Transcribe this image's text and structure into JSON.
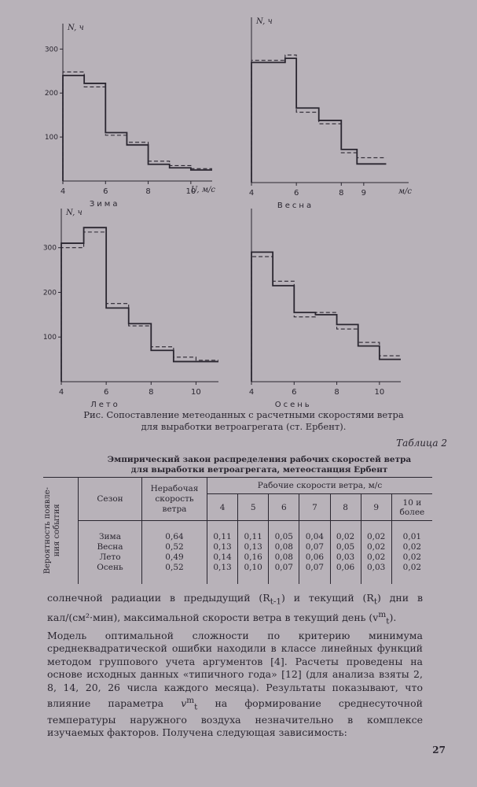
{
  "figure": {
    "caption_line1": "Рис. Сопоставление метеоданных с расчетными скоростями ветра",
    "caption_line2": "для выработки ветроагрегата (ст. Ербент)."
  },
  "chart_data": [
    {
      "type": "step",
      "title": "Зима",
      "ylabel": "N, ч",
      "xlabel": "U, м/с",
      "x_ticks": [
        "4",
        "6",
        "8",
        "10"
      ],
      "y_ticks": [
        "100",
        "200",
        "300"
      ],
      "ylim": [
        0,
        340
      ],
      "xlim": [
        4,
        11
      ],
      "series": [
        {
          "style": "solid",
          "edges": [
            4,
            5,
            6,
            7,
            8,
            9,
            10,
            11
          ],
          "values": [
            240,
            222,
            110,
            82,
            38,
            30,
            25
          ]
        },
        {
          "style": "dashed",
          "edges": [
            4,
            5,
            6,
            7,
            8,
            9,
            10,
            11
          ],
          "values": [
            248,
            214,
            104,
            88,
            45,
            35,
            28
          ]
        }
      ]
    },
    {
      "type": "step",
      "title": "Весна",
      "ylabel": "N, ч",
      "xlabel": "м/с",
      "x_ticks": [
        "4",
        "6",
        "8",
        "9"
      ],
      "y_ticks": [],
      "ylim": [
        0,
        380
      ],
      "xlim": [
        4,
        11
      ],
      "series": [
        {
          "style": "solid",
          "edges": [
            4,
            5.5,
            6,
            7,
            8,
            8.7,
            10
          ],
          "values": [
            290,
            300,
            180,
            150,
            80,
            45
          ]
        },
        {
          "style": "dashed",
          "edges": [
            4,
            5.5,
            6,
            7,
            8,
            8.7,
            10
          ],
          "values": [
            295,
            308,
            170,
            142,
            72,
            60
          ]
        }
      ]
    },
    {
      "type": "step",
      "title": "Лето",
      "ylabel": "N, ч",
      "xlabel": "",
      "x_ticks": [
        "4",
        "6",
        "8",
        "10"
      ],
      "y_ticks": [
        "100",
        "200",
        "300"
      ],
      "ylim": [
        0,
        370
      ],
      "xlim": [
        4,
        11
      ],
      "series": [
        {
          "style": "solid",
          "edges": [
            4,
            5,
            6,
            7,
            8,
            9,
            10,
            11
          ],
          "values": [
            310,
            345,
            165,
            130,
            70,
            45,
            45
          ]
        },
        {
          "style": "dashed",
          "edges": [
            4,
            5,
            6,
            7,
            8,
            9,
            10,
            11
          ],
          "values": [
            300,
            335,
            175,
            125,
            78,
            55,
            48
          ]
        }
      ]
    },
    {
      "type": "step",
      "title": "Осень",
      "ylabel": "",
      "xlabel": "",
      "x_ticks": [
        "4",
        "6",
        "8",
        "10"
      ],
      "y_ticks": [],
      "ylim": [
        0,
        370
      ],
      "xlim": [
        4,
        11
      ],
      "series": [
        {
          "style": "solid",
          "edges": [
            4,
            5,
            6,
            7,
            8,
            9,
            10,
            11
          ],
          "values": [
            290,
            215,
            155,
            150,
            128,
            80,
            50
          ]
        },
        {
          "style": "dashed",
          "edges": [
            4,
            5,
            6,
            7,
            8,
            9,
            10,
            11
          ],
          "values": [
            280,
            225,
            145,
            155,
            118,
            88,
            58
          ]
        }
      ]
    }
  ],
  "table": {
    "label": "Таблица 2",
    "title_line1": "Эмпирический закон распределения рабочих скоростей ветра",
    "title_line2": "для выработки ветроагрегата, метеостанция Ербент",
    "side_header_line1": "Вероятность появле-",
    "side_header_line2": "ния события",
    "season_header": "Сезон",
    "nonwork_header_line1": "Нерабочая",
    "nonwork_header_line2": "скорость",
    "nonwork_header_line3": "ветра",
    "work_header": "Рабочие скорости ветра, м/с",
    "speed_headers": [
      "4",
      "5",
      "6",
      "7",
      "8",
      "9"
    ],
    "last_header_line1": "10 и",
    "last_header_line2": "более",
    "seasons": [
      "Зима",
      "Весна",
      "Лето",
      "Осень"
    ],
    "nonwork": [
      "0,64",
      "0,52",
      "0,49",
      "0,52"
    ],
    "cols": [
      [
        "0,11",
        "0,13",
        "0,14",
        "0,13"
      ],
      [
        "0,11",
        "0,13",
        "0,16",
        "0,10"
      ],
      [
        "0,05",
        "0,08",
        "0,08",
        "0,07"
      ],
      [
        "0,04",
        "0,07",
        "0,06",
        "0,07"
      ],
      [
        "0,02",
        "0,05",
        "0,03",
        "0,06"
      ],
      [
        "0,02",
        "0,02",
        "0,02",
        "0,03"
      ],
      [
        "0,01",
        "0,02",
        "0,02",
        "0,02"
      ]
    ]
  },
  "text": {
    "p1_line1": "солнечной радиации в предыдущий (R",
    "p1_sub1": "t-1",
    "p1_mid": ") и текущий (R",
    "p1_sub2": "t",
    "p1_end": ") дни",
    "p1_line2": "в кал/(см²·мин), максимальной скорости ветра в текущий день (v",
    "p1_sup": "m",
    "p1_sub3": "t",
    "p1_line2_end": ").",
    "p2": "Модель оптимальной сложности по критерию минимума среднеквадратической ошибки находили в классе линейных функций методом группового учета аргументов [4]. Расчеты проведены на основе исходных данных «типичного года» [12] (для анализа взяты 2, 8, 14, 20, 26 числа каждого месяца). Результаты показывают, что влияние параметра",
    "p2_var": "v",
    "p2_sup": "m",
    "p2_sub": "t",
    "p2_end": "на формирование среднесуточной температуры наружного воздуха незначительно в комплексе изучаемых факторов. Получена следующая зависимость:"
  },
  "page_number": "27"
}
